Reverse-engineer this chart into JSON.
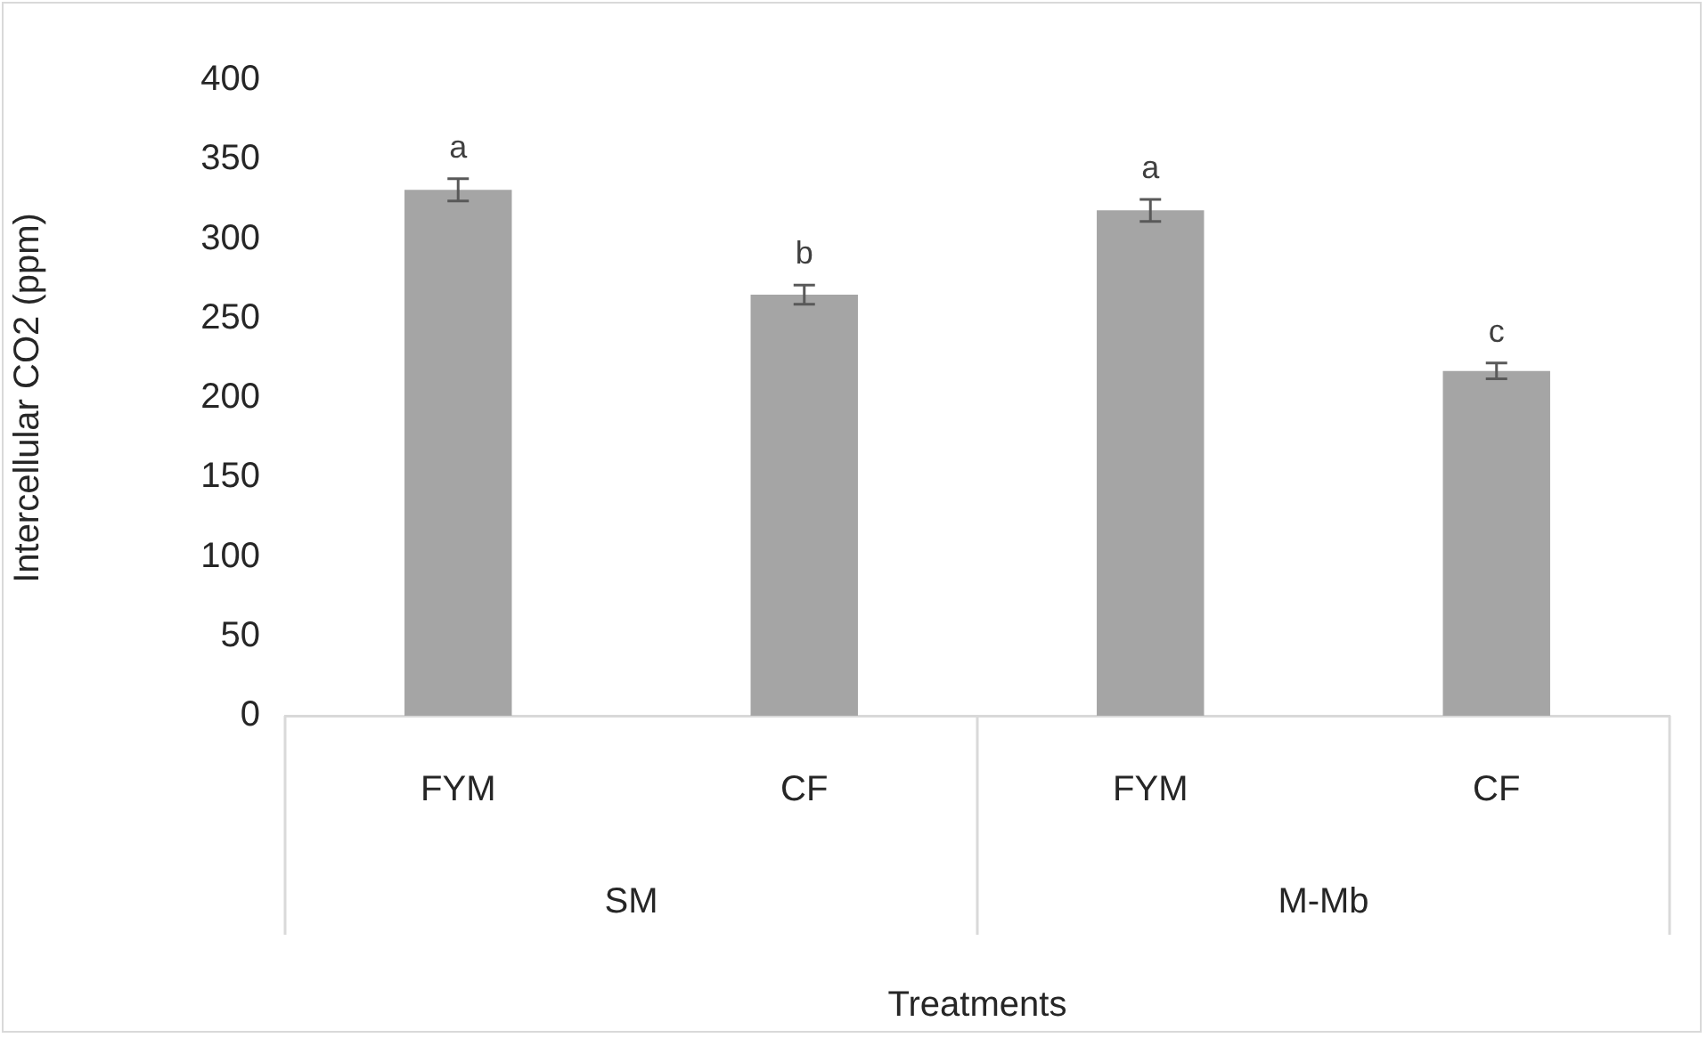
{
  "chart_data": {
    "type": "bar",
    "xlabel": "Treatments",
    "ylabel": "Intercellular CO2 (ppm)",
    "categories": [
      "FYM",
      "CF",
      "FYM",
      "CF"
    ],
    "values": [
      331,
      265,
      318,
      217
    ],
    "errors": [
      7,
      6,
      7,
      5
    ],
    "value_labels": [
      "a",
      "b",
      "a",
      "c"
    ],
    "color": "#a5a5a5",
    "ylim": [
      0,
      400
    ],
    "yticks": [
      0,
      50,
      100,
      150,
      200,
      250,
      300,
      350,
      400
    ],
    "annotations": [
      "SM",
      "M-Mb"
    ]
  }
}
